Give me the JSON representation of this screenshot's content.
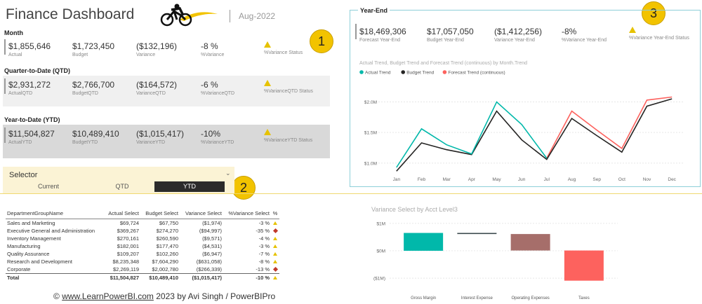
{
  "header": {
    "title": "Finance Dashboard",
    "month": "Aug-2022"
  },
  "month_section": {
    "title": "Month",
    "kpis": [
      {
        "value": "$1,855,646",
        "label": "Actual"
      },
      {
        "value": "$1,723,450",
        "label": "Budget"
      },
      {
        "value": "($132,196)",
        "label": "Variance"
      },
      {
        "value": "-8 %",
        "label": "%Variance"
      },
      {
        "value": "",
        "label": "%Variance Status"
      }
    ]
  },
  "qtd_section": {
    "title": "Quarter-to-Date (QTD)",
    "kpis": [
      {
        "value": "$2,931,272",
        "label": "ActualQTD"
      },
      {
        "value": "$2,766,700",
        "label": "BudgetQTD"
      },
      {
        "value": "($164,572)",
        "label": "VarianceQTD"
      },
      {
        "value": "-6 %",
        "label": "%VarianceQTD"
      },
      {
        "value": "",
        "label": "%VarianceQTD Status"
      }
    ]
  },
  "ytd_section": {
    "title": "Year-to-Date (YTD)",
    "kpis": [
      {
        "value": "$11,504,827",
        "label": "ActualYTD"
      },
      {
        "value": "$10,489,410",
        "label": "BudgetYTD"
      },
      {
        "value": "($1,015,417)",
        "label": "VarianceYTD"
      },
      {
        "value": "-10%",
        "label": "%VarianceYTD"
      },
      {
        "value": "",
        "label": "%VarianceYTD Status"
      }
    ]
  },
  "badges": [
    "1",
    "2",
    "3"
  ],
  "selector": {
    "title": "Selector",
    "options": [
      "Current",
      "QTD",
      "YTD"
    ],
    "selected": "YTD"
  },
  "year_end": {
    "title": "Year-End",
    "kpis": [
      {
        "value": "$18,469,306",
        "label": "Forecast Year-End"
      },
      {
        "value": "$17,057,050",
        "label": "Budget Year-End"
      },
      {
        "value": "($1,412,256)",
        "label": "Variance Year-End"
      },
      {
        "value": "-8%",
        "label": "%Variance Year-End"
      },
      {
        "value": "",
        "label": "%Variance Year-End Status"
      }
    ]
  },
  "dept_table": {
    "headers": [
      "DepartmentGroupName",
      "Actual Select",
      "Budget Select",
      "Variance Select",
      "%Variance Select",
      "%"
    ],
    "rows": [
      {
        "name": "Sales and Marketing",
        "actual": "$69,724",
        "budget": "$67,750",
        "variance": "($1,974)",
        "pct": "-3 %",
        "status": "warn"
      },
      {
        "name": "Executive General and Administration",
        "actual": "$369,267",
        "budget": "$274,270",
        "variance": "($94,997)",
        "pct": "-35 %",
        "status": "bad"
      },
      {
        "name": "Inventory Management",
        "actual": "$270,161",
        "budget": "$260,590",
        "variance": "($9,571)",
        "pct": "-4 %",
        "status": "warn"
      },
      {
        "name": "Manufacturing",
        "actual": "$182,001",
        "budget": "$177,470",
        "variance": "($4,531)",
        "pct": "-3 %",
        "status": "warn"
      },
      {
        "name": "Quality Assurance",
        "actual": "$109,207",
        "budget": "$102,260",
        "variance": "($6,947)",
        "pct": "-7 %",
        "status": "warn"
      },
      {
        "name": "Research and Development",
        "actual": "$8,235,348",
        "budget": "$7,604,290",
        "variance": "($631,058)",
        "pct": "-8 %",
        "status": "warn"
      },
      {
        "name": "Corporate",
        "actual": "$2,269,119",
        "budget": "$2,002,780",
        "variance": "($266,339)",
        "pct": "-13 %",
        "status": "bad"
      }
    ],
    "total": {
      "name": "Total",
      "actual": "$11,504,827",
      "budget": "$10,489,410",
      "variance": "($1,015,417)",
      "pct": "-10 %",
      "status": "warn"
    }
  },
  "footer": {
    "prefix": "©",
    "link": "www.LearnPowerBI.com",
    "suffix": "2023  by Avi Singh / PowerBIPro"
  },
  "chart_data": [
    {
      "type": "line",
      "title": "Actual Trend, Budget Trend and Forecast Trend (continuous) by Month.Trend",
      "categories": [
        "Jan",
        "Feb",
        "Mar",
        "Apr",
        "May",
        "Jun",
        "Jul",
        "Aug",
        "Sep",
        "Oct",
        "Nov",
        "Dec"
      ],
      "ylim": [
        0.85,
        2.2
      ],
      "yticks": [
        {
          "v": 1.0,
          "label": "$1.0M"
        },
        {
          "v": 1.5,
          "label": "$1.5M"
        },
        {
          "v": 2.0,
          "label": "$2.0M"
        }
      ],
      "series": [
        {
          "name": "Actual Trend",
          "color": "#01b8aa",
          "values": [
            0.93,
            1.56,
            1.3,
            1.15,
            2.0,
            1.63,
            1.08,
            null,
            null,
            null,
            null,
            null
          ]
        },
        {
          "name": "Budget Trend",
          "color": "#252423",
          "values": [
            0.87,
            1.33,
            1.22,
            1.14,
            1.85,
            1.38,
            1.06,
            1.73,
            1.45,
            1.18,
            1.93,
            2.05
          ]
        },
        {
          "name": "Forecast Trend (continuous)",
          "color": "#fd625e",
          "values": [
            null,
            null,
            null,
            null,
            null,
            null,
            1.08,
            1.85,
            1.54,
            1.24,
            2.03,
            2.08
          ]
        }
      ],
      "grid": true,
      "legend": "top-left"
    },
    {
      "type": "bar",
      "title": "Variance Select by Acct Level3",
      "categories": [
        "Gross Margin",
        "Interest Expense",
        "Operating Expenses",
        "Taxes"
      ],
      "series": [
        {
          "name": "Variance Select",
          "values": [
            0.65,
            -0.04,
            -0.6,
            -1.1
          ],
          "colors": [
            "#01b8aa",
            "#374649",
            "#a66e6a",
            "#fd625e"
          ]
        }
      ],
      "ylim": [
        -1.2,
        1.2
      ],
      "yticks": [
        {
          "v": 1,
          "label": "$1M"
        },
        {
          "v": 0,
          "label": "$0M"
        },
        {
          "v": -1,
          "label": "($1M)"
        }
      ]
    }
  ]
}
